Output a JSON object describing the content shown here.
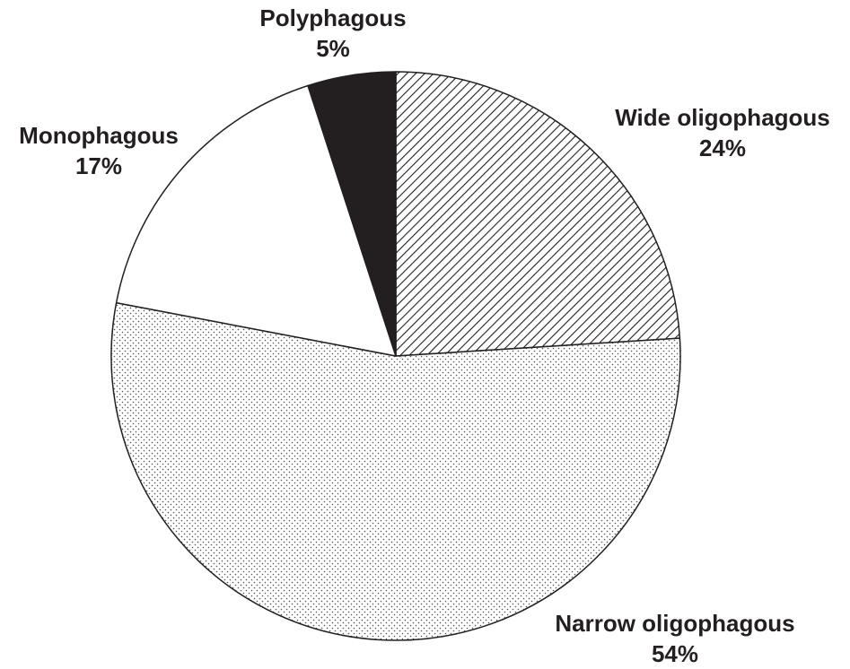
{
  "chart_data": {
    "type": "pie",
    "categories": [
      "Wide oligophagous",
      "Narrow oligophagous",
      "Monophagous",
      "Polyphagous"
    ],
    "values": [
      24,
      54,
      17,
      5
    ],
    "value_labels": [
      "24%",
      "54%",
      "17%",
      "5%"
    ],
    "colors": [
      "#ffffff",
      "#ffffff",
      "#ffffff",
      "#231f20"
    ],
    "patterns": [
      "hatch",
      "dots",
      "none",
      "none"
    ]
  }
}
